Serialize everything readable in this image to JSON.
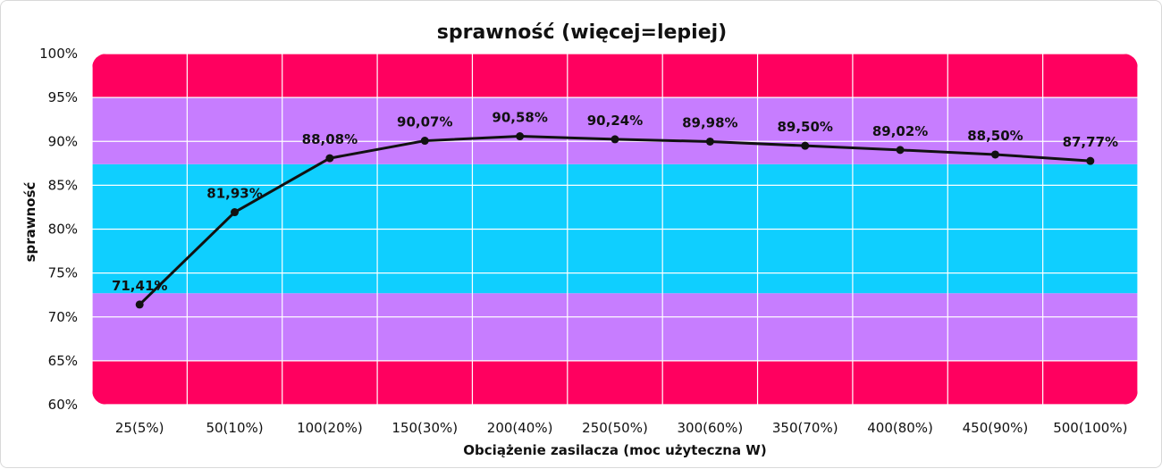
{
  "chart_data": {
    "type": "line",
    "title": "sprawność (więcej=lepiej)",
    "xlabel": "Obciążenie zasilacza (moc użyteczna W)",
    "ylabel": "sprawność",
    "categories": [
      "25(5%)",
      "50(10%)",
      "100(20%)",
      "150(30%)",
      "200(40%)",
      "250(50%)",
      "300(60%)",
      "350(70%)",
      "400(80%)",
      "450(90%)",
      "500(100%)"
    ],
    "series": [
      {
        "values": [
          71.41,
          81.93,
          88.08,
          90.07,
          90.58,
          90.24,
          89.98,
          89.5,
          89.02,
          88.5,
          87.77
        ],
        "labels": [
          "71,41%",
          "81,93%",
          "88,08%",
          "90,07%",
          "90,58%",
          "90,24%",
          "89,98%",
          "89,50%",
          "89,02%",
          "88,50%",
          "87,77%"
        ]
      }
    ],
    "ylim": [
      60,
      100
    ],
    "yticks": [
      60,
      65,
      70,
      75,
      80,
      85,
      90,
      95,
      100
    ],
    "ytick_labels": [
      "60%",
      "65%",
      "70%",
      "75%",
      "80%",
      "85%",
      "90%",
      "95%",
      "100%"
    ],
    "bands": [
      {
        "from": 60,
        "to": 65,
        "color": "#ff005f"
      },
      {
        "from": 65,
        "to": 72.7,
        "color": "#c77dff"
      },
      {
        "from": 72.7,
        "to": 87.4,
        "color": "#0fcfff"
      },
      {
        "from": 87.4,
        "to": 95,
        "color": "#c77dff"
      },
      {
        "from": 95,
        "to": 100,
        "color": "#ff005f"
      }
    ],
    "line_color": "#111111",
    "grid": true,
    "legend": "none"
  }
}
